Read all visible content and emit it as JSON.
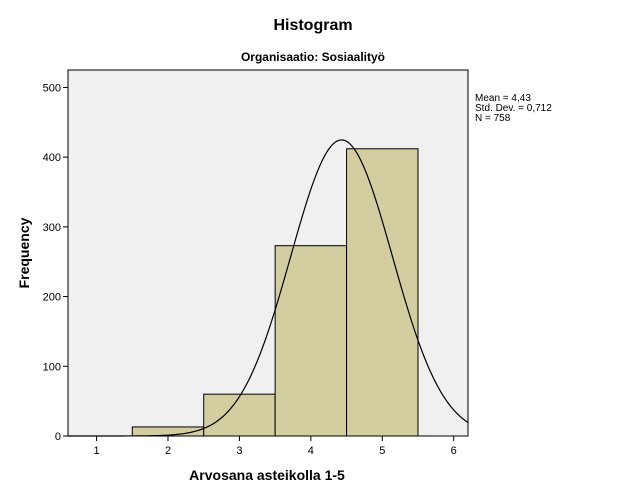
{
  "chart_data": {
    "type": "bar",
    "title": "Histogram",
    "subtitle": "Organisaatio: Sosiaalityö",
    "xlabel": "Arvosana asteikolla 1-5",
    "ylabel": "Frequency",
    "xlim": [
      0.6,
      6.2
    ],
    "ylim": [
      0,
      525
    ],
    "xticks": [
      1,
      2,
      3,
      4,
      5,
      6
    ],
    "yticks": [
      0,
      100,
      200,
      300,
      400,
      500
    ],
    "bars": [
      {
        "x0": 1.5,
        "x1": 2.5,
        "value": 13
      },
      {
        "x0": 2.5,
        "x1": 3.5,
        "value": 60
      },
      {
        "x0": 3.5,
        "x1": 4.5,
        "value": 273
      },
      {
        "x0": 4.5,
        "x1": 5.5,
        "value": 412
      }
    ],
    "normal_curve": {
      "mean": 4.43,
      "sd": 0.712,
      "n": 758,
      "bin_width": 1
    },
    "stats": [
      "Mean = 4,43",
      "Std. Dev. = 0,712",
      "N = 758"
    ],
    "grid": false,
    "legend": "none",
    "colors": {
      "plot_background": "#f0f0f0",
      "bar_fill": "#d3ce9f",
      "bar_stroke": "#000000",
      "curve": "#000000"
    }
  }
}
